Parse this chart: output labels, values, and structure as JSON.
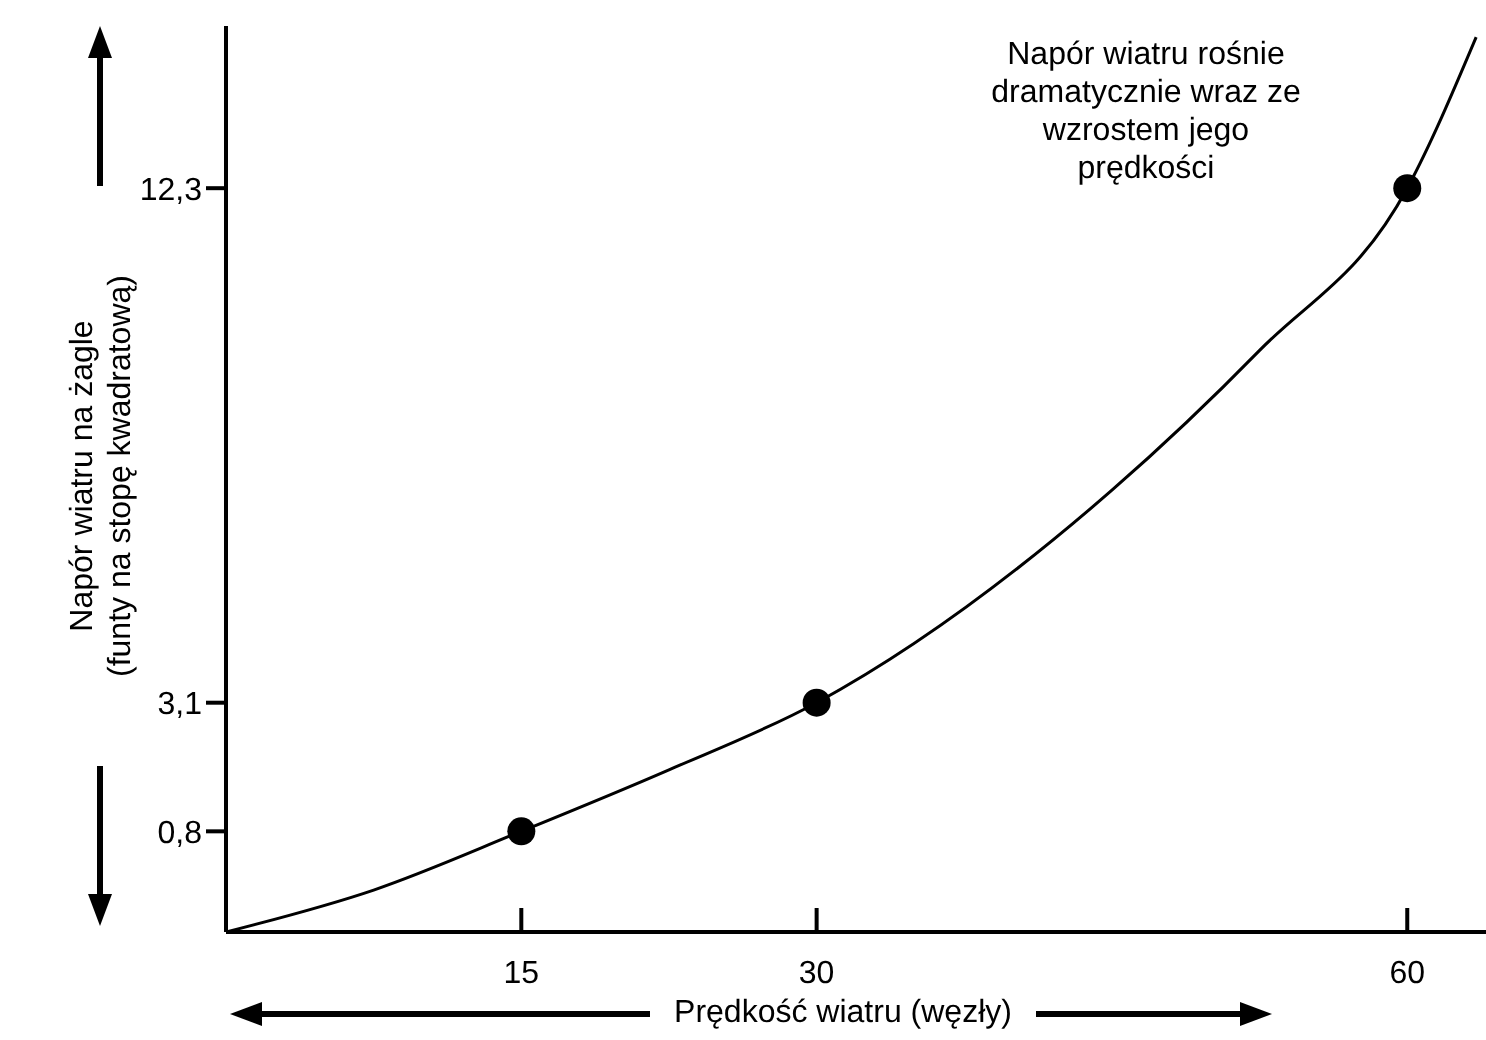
{
  "chart_data": {
    "type": "scatter",
    "xlabel": "Prędkość wiatru (węzły)",
    "ylabel": "Napór wiatru na żagle\n(funty na stopę kwadratową)",
    "annotations": [
      "Napór wiatru rośnie dramatycznie wraz ze wzrostem jego prędkości"
    ],
    "xlim": [
      0,
      64
    ],
    "ylim": [
      -1,
      15.2
    ],
    "xticks": [
      15,
      30,
      60
    ],
    "yticks": [
      {
        "value": 0.8,
        "label": "0,8"
      },
      {
        "value": 3.1,
        "label": "3,1"
      },
      {
        "value": 12.3,
        "label": "12,3"
      }
    ],
    "series": [
      {
        "type": "line",
        "marker": "none",
        "color": "#000000",
        "x": [
          0,
          7.5,
          15,
          22.5,
          30,
          45,
          52.5,
          60,
          63.5
        ],
        "values": [
          -1,
          -0.25,
          0.8,
          1.9,
          3.1,
          6.9,
          9.4,
          12.3,
          15
        ]
      },
      {
        "marker": "circle",
        "color": "#000000",
        "x": [
          15,
          30,
          60
        ],
        "values": [
          0.8,
          3.1,
          12.3
        ]
      }
    ]
  }
}
